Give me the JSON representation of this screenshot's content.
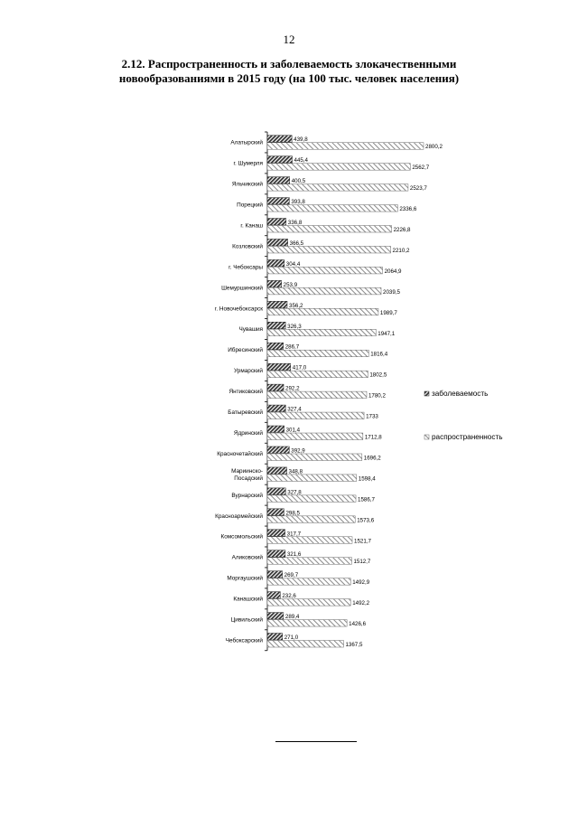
{
  "page": {
    "number": "12",
    "title_line1": "2.12. Распространенность и заболеваемость злокачественными",
    "title_line2": "новообразованиями в 2015 году (на 100 тыс. человек населения)"
  },
  "chart_data": {
    "type": "bar",
    "orientation": "horizontal",
    "title": "2.12. Распространенность и заболеваемость злокачественными новообразованиями в 2015 году (на 100 тыс. человек населения)",
    "xlim": [
      0,
      3000
    ],
    "grid": false,
    "legend_position": "right",
    "categories": [
      "Алатырский",
      "г. Шумерля",
      "Яльчикский",
      "Порецкий",
      "г. Канаш",
      "Козловский",
      "г. Чебоксары",
      "Шемуршинский",
      "г. Новочебоксарск",
      "Чувашия",
      "Ибресинский",
      "Урмарский",
      "Янтиковский",
      "Батыревский",
      "Ядринский",
      "Красночетайский",
      "Мариинско-Посадский",
      "Вурнарский",
      "Красноармейский",
      "Комсомольский",
      "Аликовский",
      "Моргаушский",
      "Канашский",
      "Цивильский",
      "Чебоксарский"
    ],
    "category_lines": [
      [
        "Алатырский"
      ],
      [
        "г. Шумерля"
      ],
      [
        "Яльчикский"
      ],
      [
        "Порецкий"
      ],
      [
        "г. Канаш"
      ],
      [
        "Козловский"
      ],
      [
        "г. Чебоксары"
      ],
      [
        "Шемуршинский"
      ],
      [
        "г. Новочебоксарск"
      ],
      [
        "Чувашия"
      ],
      [
        "Ибресинский"
      ],
      [
        "Урмарский"
      ],
      [
        "Янтиковский"
      ],
      [
        "Батыревский"
      ],
      [
        "Ядринский"
      ],
      [
        "Красночетайский"
      ],
      [
        "Мариинско-",
        "Посадский"
      ],
      [
        "Вурнарский"
      ],
      [
        "Красноармейский"
      ],
      [
        "Комсомольский"
      ],
      [
        "Аликовский"
      ],
      [
        "Моргаушский"
      ],
      [
        "Канашский"
      ],
      [
        "Цивильский"
      ],
      [
        "Чебоксарский"
      ]
    ],
    "series": [
      {
        "name": "заболеваемость",
        "color": "#555555",
        "values": [
          439.8,
          445.4,
          400.5,
          393.8,
          336.8,
          366.5,
          304.4,
          253.9,
          356.2,
          326.3,
          286.7,
          417.0,
          292.2,
          327.4,
          301.4,
          392.9,
          348.8,
          327.8,
          298.5,
          317.7,
          321.6,
          269.7,
          232.6,
          289.4,
          271.0
        ],
        "labels": [
          "439,8",
          "445,4",
          "400,5",
          "393,8",
          "336,8",
          "366,5",
          "304,4",
          "253,9",
          "356,2",
          "326,3",
          "286,7",
          "417,0",
          "292,2",
          "327,4",
          "301,4",
          "392,9",
          "348,8",
          "327,8",
          "298,5",
          "317,7",
          "321,6",
          "269,7",
          "232,6",
          "289,4",
          "271,0"
        ]
      },
      {
        "name": "распространенность",
        "color": "#d9d9d9",
        "values": [
          2800.2,
          2562.7,
          2523.7,
          2336.6,
          2226.8,
          2210.2,
          2064.9,
          2039.5,
          1989.7,
          1947.1,
          1816.4,
          1802.5,
          1780.2,
          1733,
          1712.8,
          1696.2,
          1598.4,
          1586.7,
          1573.6,
          1521.7,
          1512.7,
          1492.9,
          1492.2,
          1426.6,
          1367.5
        ],
        "labels": [
          "2800,2",
          "2562,7",
          "2523,7",
          "2336,6",
          "2226,8",
          "2210,2",
          "2064,9",
          "2039,5",
          "1989,7",
          "1947,1",
          "1816,4",
          "1802,5",
          "1780,2",
          "1733",
          "1712,8",
          "1696,2",
          "1598,4",
          "1586,7",
          "1573,6",
          "1521,7",
          "1512,7",
          "1492,9",
          "1492,2",
          "1426,6",
          "1367,5"
        ]
      }
    ]
  }
}
